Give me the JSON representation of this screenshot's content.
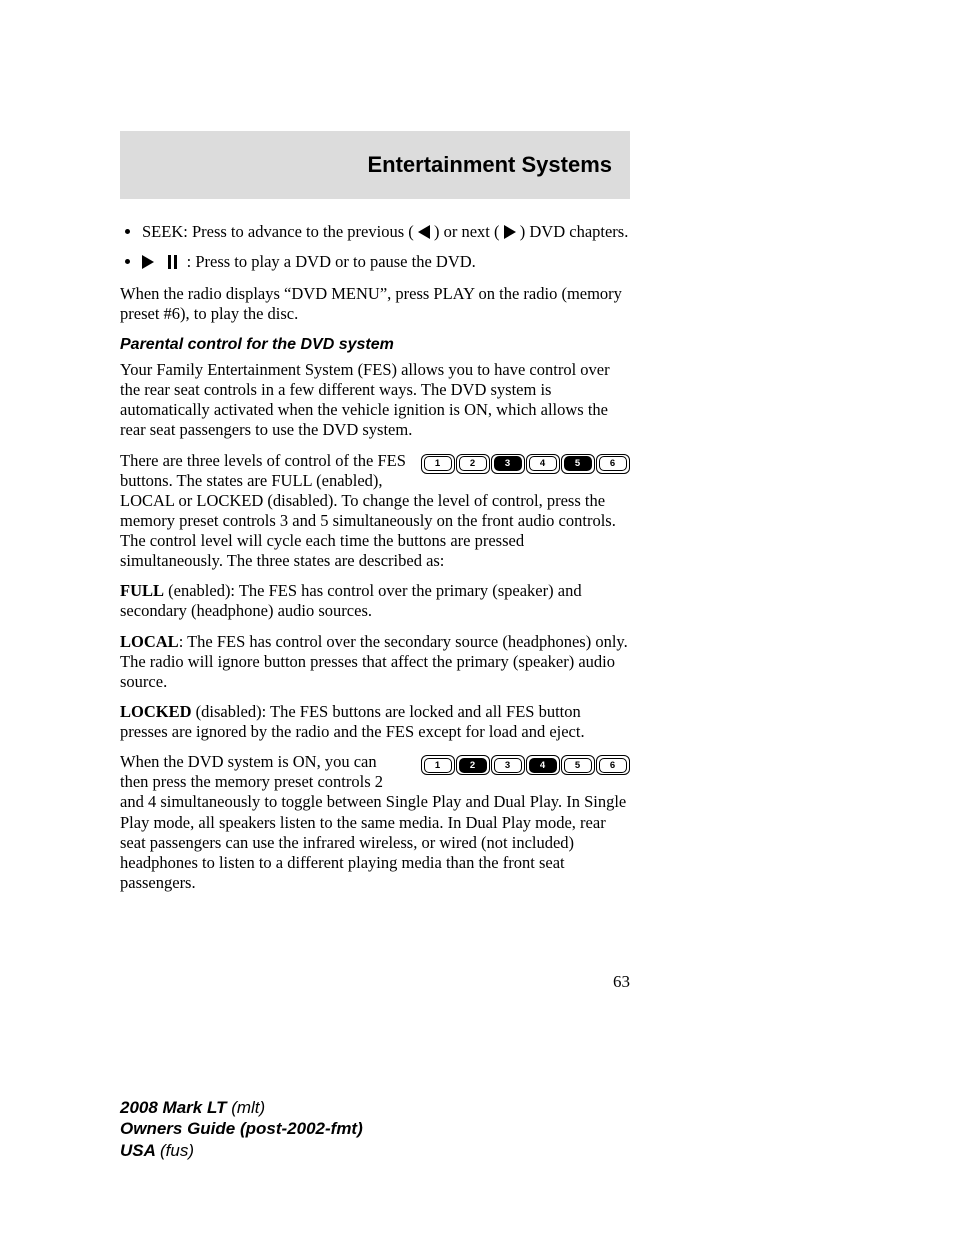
{
  "colors": {
    "header_bg": "#dcdcdc",
    "page_bg": "#ffffff",
    "text": "#000000",
    "preset_highlight_bg": "#000000",
    "preset_highlight_fg": "#ffffff"
  },
  "typography": {
    "body_font": "Times New Roman",
    "heading_font": "Arial",
    "body_size_pt": 12,
    "header_title_size_pt": 16,
    "section_heading_size_pt": 12,
    "footer_size_pt": 13
  },
  "header": {
    "title": "Entertainment Systems"
  },
  "bullets": {
    "seek": {
      "pre": "SEEK: Press to advance to the previous (",
      "mid": ") or next (",
      "post": ") DVD chapters."
    },
    "playpause": ": Press to play a DVD or to pause the DVD."
  },
  "dvd_menu_para": "When the radio displays “DVD MENU”, press PLAY on the radio (memory preset #6), to play the disc.",
  "section_heading": "Parental control for the DVD system",
  "intro_para": "Your Family Entertainment System (FES) allows you to have control over the rear seat controls in a few different ways. The DVD system is automatically activated when the vehicle ignition is ON, which allows the rear seat passengers to use the DVD system.",
  "presets1": {
    "labels": [
      "1",
      "2",
      "3",
      "4",
      "5",
      "6"
    ],
    "highlighted": [
      3,
      5
    ],
    "text_before": "There are three levels of control of the FES buttons. The states are FULL (enabled), LOCAL or ",
    "text_after": "LOCKED (disabled). To change the level of control, press the memory preset controls 3 and 5 simultaneously on the front audio controls. The control level will cycle each time the buttons are pressed simultaneously. The three states are described as:"
  },
  "full_state": {
    "label": "FULL",
    "desc": " (enabled): The FES has control over the primary (speaker) and secondary (headphone) audio sources."
  },
  "local_state": {
    "label": "LOCAL",
    "desc": ": The FES has control over the secondary source (headphones) only. The radio will ignore button presses that affect the primary (speaker) audio source."
  },
  "locked_state": {
    "label": "LOCKED",
    "desc": " (disabled): The FES buttons are locked and all FES button presses are ignored by the radio and the FES except for load and eject."
  },
  "presets2": {
    "labels": [
      "1",
      "2",
      "3",
      "4",
      "5",
      "6"
    ],
    "highlighted": [
      2,
      4
    ],
    "text_before": "When the DVD system is ON, you can then press the memory preset controls 2 and 4 simultaneously to ",
    "text_after": "toggle between Single Play and Dual Play. In Single Play mode, all speakers listen to the same media. In Dual Play mode, rear seat passengers can use the infrared wireless, or wired (not included) headphones to listen to a different playing media than the front seat passengers."
  },
  "page_number": "63",
  "footer": {
    "line1_bold": "2008 Mark LT ",
    "line1_it": "(mlt)",
    "line2_bold": "Owners Guide (post-2002-fmt)",
    "line3_bold": "USA ",
    "line3_it": "(fus)"
  }
}
